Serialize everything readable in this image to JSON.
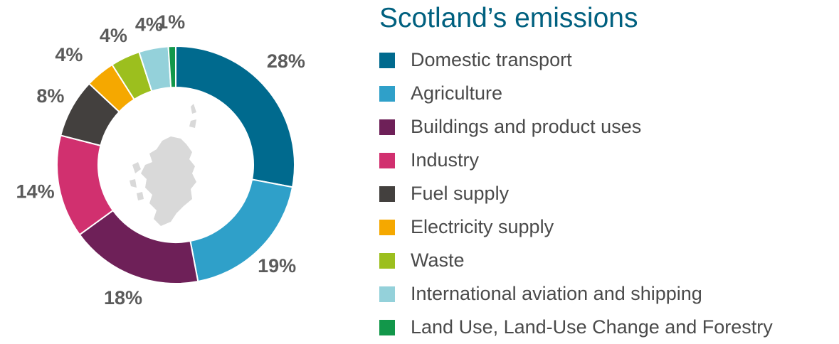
{
  "chart_data": {
    "type": "pie",
    "title": "Scotland’s emissions",
    "categories": [
      "Domestic transport",
      "Agriculture",
      "Buildings and product uses",
      "Industry",
      "Fuel supply",
      "Electricity supply",
      "Waste",
      "International aviation and shipping",
      "Land Use, Land-Use Change and Forestry"
    ],
    "values": [
      28,
      19,
      18,
      14,
      8,
      4,
      4,
      4,
      1
    ],
    "value_labels": [
      "28%",
      "19%",
      "18%",
      "14%",
      "8%",
      "4%",
      "4%",
      "4%",
      "1%"
    ],
    "colors": [
      "#006a8e",
      "#2fa0c9",
      "#6e2058",
      "#d1306f",
      "#43403e",
      "#f5a800",
      "#9cbf1e",
      "#94d1da",
      "#12974a"
    ],
    "center_icon": "scotland-map-icon",
    "legend_position": "right"
  }
}
